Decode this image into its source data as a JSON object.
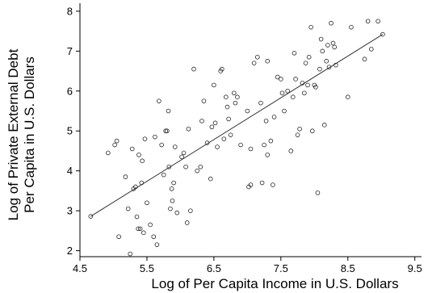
{
  "chart_data": {
    "type": "scatter",
    "title": "",
    "xlabel": "Log of Per Capita Income in U.S. Dollars",
    "ylabel_lines": [
      "Log of Private External Debt",
      "Per Capita in U.S. Dollars"
    ],
    "xlim": [
      4.5,
      9.6
    ],
    "ylim": [
      1.85,
      8.2
    ],
    "x_ticks": [
      4.5,
      5.5,
      6.5,
      7.5,
      8.5,
      9.5
    ],
    "x_tick_labels": [
      "4.5",
      "5.5",
      "6.5",
      "7.5",
      "8.5",
      "9.5"
    ],
    "y_ticks": [
      2,
      3,
      4,
      5,
      6,
      7,
      8
    ],
    "y_tick_labels": [
      "2",
      "3",
      "4",
      "5",
      "6",
      "7",
      "8"
    ],
    "grid": false,
    "fit_line": {
      "x": [
        4.66,
        9.02
      ],
      "y": [
        2.86,
        7.42
      ]
    },
    "points": [
      {
        "x": 4.66,
        "y": 2.86
      },
      {
        "x": 4.92,
        "y": 4.45
      },
      {
        "x": 5.02,
        "y": 4.65
      },
      {
        "x": 5.05,
        "y": 4.75
      },
      {
        "x": 5.08,
        "y": 2.35
      },
      {
        "x": 5.18,
        "y": 3.85
      },
      {
        "x": 5.22,
        "y": 3.05
      },
      {
        "x": 5.25,
        "y": 1.92
      },
      {
        "x": 5.28,
        "y": 4.55
      },
      {
        "x": 5.3,
        "y": 3.55
      },
      {
        "x": 5.33,
        "y": 3.6
      },
      {
        "x": 5.35,
        "y": 2.85
      },
      {
        "x": 5.37,
        "y": 2.55
      },
      {
        "x": 5.38,
        "y": 4.4
      },
      {
        "x": 5.4,
        "y": 2.55
      },
      {
        "x": 5.42,
        "y": 3.7
      },
      {
        "x": 5.43,
        "y": 4.25
      },
      {
        "x": 5.45,
        "y": 2.45
      },
      {
        "x": 5.47,
        "y": 4.8
      },
      {
        "x": 5.5,
        "y": 3.2
      },
      {
        "x": 5.55,
        "y": 2.65
      },
      {
        "x": 5.6,
        "y": 2.35
      },
      {
        "x": 5.62,
        "y": 4.85
      },
      {
        "x": 5.65,
        "y": 2.15
      },
      {
        "x": 5.68,
        "y": 5.75
      },
      {
        "x": 5.72,
        "y": 4.65
      },
      {
        "x": 5.75,
        "y": 3.9
      },
      {
        "x": 5.78,
        "y": 5.0
      },
      {
        "x": 5.8,
        "y": 5.0
      },
      {
        "x": 5.82,
        "y": 5.5
      },
      {
        "x": 5.83,
        "y": 4.1
      },
      {
        "x": 5.85,
        "y": 3.05
      },
      {
        "x": 5.87,
        "y": 3.55
      },
      {
        "x": 5.88,
        "y": 3.25
      },
      {
        "x": 5.9,
        "y": 3.7
      },
      {
        "x": 5.92,
        "y": 4.6
      },
      {
        "x": 5.95,
        "y": 2.95
      },
      {
        "x": 6.02,
        "y": 4.35
      },
      {
        "x": 6.05,
        "y": 4.45
      },
      {
        "x": 6.08,
        "y": 4.1
      },
      {
        "x": 6.1,
        "y": 2.7
      },
      {
        "x": 6.12,
        "y": 5.05
      },
      {
        "x": 6.15,
        "y": 3.0
      },
      {
        "x": 6.2,
        "y": 6.55
      },
      {
        "x": 6.25,
        "y": 4.0
      },
      {
        "x": 6.3,
        "y": 4.1
      },
      {
        "x": 6.32,
        "y": 5.25
      },
      {
        "x": 6.35,
        "y": 5.75
      },
      {
        "x": 6.4,
        "y": 4.7
      },
      {
        "x": 6.45,
        "y": 3.8
      },
      {
        "x": 6.47,
        "y": 5.1
      },
      {
        "x": 6.5,
        "y": 6.15
      },
      {
        "x": 6.52,
        "y": 5.2
      },
      {
        "x": 6.55,
        "y": 4.6
      },
      {
        "x": 6.6,
        "y": 6.5
      },
      {
        "x": 6.62,
        "y": 6.55
      },
      {
        "x": 6.65,
        "y": 4.8
      },
      {
        "x": 6.68,
        "y": 5.85
      },
      {
        "x": 6.7,
        "y": 5.6
      },
      {
        "x": 6.72,
        "y": 5.3
      },
      {
        "x": 6.75,
        "y": 4.9
      },
      {
        "x": 6.8,
        "y": 5.95
      },
      {
        "x": 6.82,
        "y": 5.7
      },
      {
        "x": 6.85,
        "y": 5.85
      },
      {
        "x": 6.9,
        "y": 4.65
      },
      {
        "x": 7.0,
        "y": 5.5
      },
      {
        "x": 7.02,
        "y": 3.6
      },
      {
        "x": 7.05,
        "y": 3.65
      },
      {
        "x": 7.05,
        "y": 4.55
      },
      {
        "x": 7.1,
        "y": 6.7
      },
      {
        "x": 7.15,
        "y": 6.85
      },
      {
        "x": 7.2,
        "y": 5.7
      },
      {
        "x": 7.22,
        "y": 3.7
      },
      {
        "x": 7.25,
        "y": 4.65
      },
      {
        "x": 7.28,
        "y": 5.25
      },
      {
        "x": 7.3,
        "y": 6.75
      },
      {
        "x": 7.3,
        "y": 4.4
      },
      {
        "x": 7.35,
        "y": 4.75
      },
      {
        "x": 7.38,
        "y": 3.65
      },
      {
        "x": 7.4,
        "y": 5.35
      },
      {
        "x": 7.45,
        "y": 6.35
      },
      {
        "x": 7.5,
        "y": 6.3
      },
      {
        "x": 7.52,
        "y": 5.95
      },
      {
        "x": 7.55,
        "y": 5.5
      },
      {
        "x": 7.6,
        "y": 6.0
      },
      {
        "x": 7.65,
        "y": 4.5
      },
      {
        "x": 7.68,
        "y": 5.85
      },
      {
        "x": 7.7,
        "y": 6.95
      },
      {
        "x": 7.72,
        "y": 6.3
      },
      {
        "x": 7.75,
        "y": 4.9
      },
      {
        "x": 7.78,
        "y": 5.05
      },
      {
        "x": 7.82,
        "y": 6.2
      },
      {
        "x": 7.85,
        "y": 5.95
      },
      {
        "x": 7.87,
        "y": 6.7
      },
      {
        "x": 7.9,
        "y": 6.15
      },
      {
        "x": 7.92,
        "y": 6.85
      },
      {
        "x": 7.95,
        "y": 7.6
      },
      {
        "x": 7.97,
        "y": 5.0
      },
      {
        "x": 8.0,
        "y": 6.15
      },
      {
        "x": 8.02,
        "y": 6.1
      },
      {
        "x": 8.05,
        "y": 3.45
      },
      {
        "x": 8.08,
        "y": 6.55
      },
      {
        "x": 8.1,
        "y": 7.3
      },
      {
        "x": 8.12,
        "y": 7.0
      },
      {
        "x": 8.15,
        "y": 5.15
      },
      {
        "x": 8.18,
        "y": 6.75
      },
      {
        "x": 8.2,
        "y": 7.15
      },
      {
        "x": 8.22,
        "y": 6.6
      },
      {
        "x": 8.25,
        "y": 7.7
      },
      {
        "x": 8.28,
        "y": 7.2
      },
      {
        "x": 8.3,
        "y": 7.1
      },
      {
        "x": 8.32,
        "y": 6.65
      },
      {
        "x": 8.5,
        "y": 5.85
      },
      {
        "x": 8.55,
        "y": 7.6
      },
      {
        "x": 8.75,
        "y": 6.8
      },
      {
        "x": 8.8,
        "y": 7.75
      },
      {
        "x": 8.85,
        "y": 7.05
      },
      {
        "x": 8.95,
        "y": 7.75
      },
      {
        "x": 9.02,
        "y": 7.42
      }
    ]
  }
}
